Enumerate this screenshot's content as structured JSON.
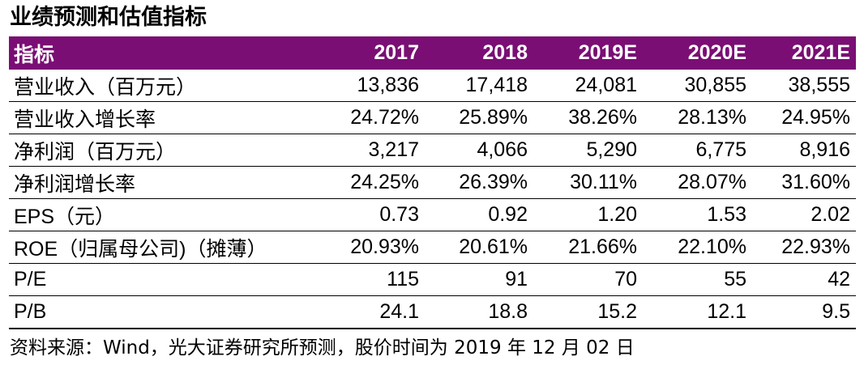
{
  "title": "业绩预测和估值指标",
  "table": {
    "headers": [
      "指标",
      "2017",
      "2018",
      "2019E",
      "2020E",
      "2021E"
    ],
    "rows": [
      [
        "营业收入（百万元）",
        "13,836",
        "17,418",
        "24,081",
        "30,855",
        "38,555"
      ],
      [
        "营业收入增长率",
        "24.72%",
        "25.89%",
        "38.26%",
        "28.13%",
        "24.95%"
      ],
      [
        "净利润（百万元）",
        "3,217",
        "4,066",
        "5,290",
        "6,775",
        "8,916"
      ],
      [
        "净利润增长率",
        "24.25%",
        "26.39%",
        "30.11%",
        "28.07%",
        "31.60%"
      ],
      [
        "EPS（元）",
        "0.73",
        "0.92",
        "1.20",
        "1.53",
        "2.02"
      ],
      [
        "ROE（归属母公司)（摊薄）",
        "20.93%",
        "20.61%",
        "21.66%",
        "22.10%",
        "22.93%"
      ],
      [
        "P/E",
        "115",
        "91",
        "70",
        "55",
        "42"
      ],
      [
        "P/B",
        "24.1",
        "18.8",
        "15.2",
        "12.1",
        "9.5"
      ]
    ]
  },
  "source": "资料来源：Wind，光大证券研究所预测，股价时间为 2019 年 12 月 02 日",
  "colors": {
    "header_bg": "#7a0e74",
    "header_text": "#ffffff"
  }
}
